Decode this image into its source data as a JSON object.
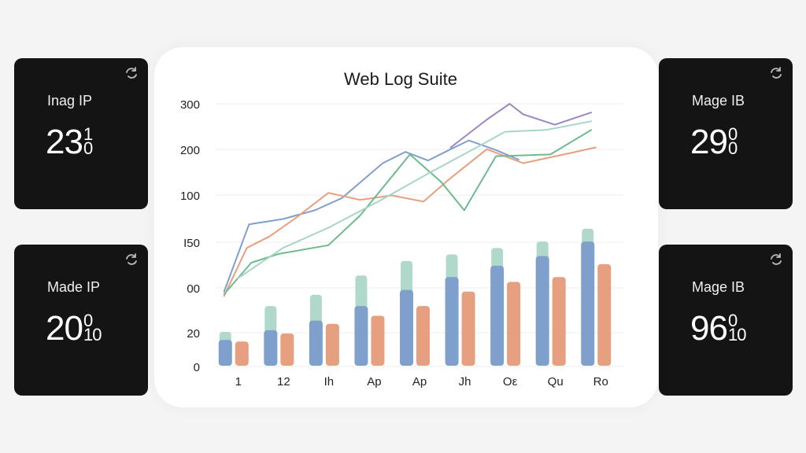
{
  "cards": [
    {
      "label": "Inag IP",
      "main": "23",
      "sup": "1",
      "sub": "0"
    },
    {
      "label": "Made IP",
      "main": "20",
      "sup": "0",
      "sub": "10"
    },
    {
      "label": "Mage IB",
      "main": "29",
      "sup": "0",
      "sub": "0"
    },
    {
      "label": "Mage IB",
      "main": "96",
      "sup": "0",
      "sub": "10"
    }
  ],
  "chart_data": {
    "type": "bar",
    "title": "Web Log Suite",
    "xlabel": "",
    "ylabel": "",
    "categories": [
      "1",
      "12",
      "Ih",
      "Ap",
      "Ap",
      "Jh",
      "Oε",
      "Qu",
      "Ro"
    ],
    "y_tick_labels": [
      "0",
      "20",
      "00",
      "I50",
      "100",
      "200",
      "300"
    ],
    "grid": true,
    "bar_series": [
      {
        "color": "#a8d5c5",
        "values": [
          21,
          37,
          44,
          56,
          65,
          69,
          73,
          77,
          85
        ]
      },
      {
        "color": "#7f9fcc",
        "values": [
          16,
          22,
          28,
          37,
          47,
          55,
          62,
          68,
          77
        ]
      },
      {
        "color": "#e6a07f",
        "values": [
          15,
          20,
          26,
          31,
          37,
          46,
          52,
          55,
          63
        ]
      }
    ],
    "line_series": [
      {
        "color": "#7f9fcc",
        "values": [
          [
            0.0,
            85
          ],
          [
            0.55,
            162
          ],
          [
            1.3,
            168
          ],
          [
            2.0,
            178
          ],
          [
            2.6,
            192
          ],
          [
            3.5,
            232
          ],
          [
            4.0,
            245
          ],
          [
            4.5,
            235
          ],
          [
            5.0,
            248
          ],
          [
            5.4,
            258
          ],
          [
            6.0,
            247
          ],
          [
            6.5,
            236
          ]
        ]
      },
      {
        "color": "#e6a07f",
        "values": [
          [
            0.0,
            80
          ],
          [
            0.5,
            135
          ],
          [
            1.0,
            148
          ],
          [
            1.6,
            170
          ],
          [
            2.3,
            198
          ],
          [
            3.0,
            190
          ],
          [
            3.7,
            195
          ],
          [
            4.4,
            188
          ],
          [
            5.0,
            215
          ],
          [
            5.8,
            248
          ],
          [
            6.6,
            232
          ],
          [
            7.5,
            242
          ],
          [
            8.2,
            250
          ]
        ]
      },
      {
        "color": "#6dbb8c",
        "values": [
          [
            0.0,
            82
          ],
          [
            0.6,
            118
          ],
          [
            1.2,
            128
          ],
          [
            2.3,
            138
          ],
          [
            3.0,
            172
          ],
          [
            4.1,
            242
          ],
          [
            4.8,
            210
          ],
          [
            5.3,
            178
          ],
          [
            6.0,
            240
          ],
          [
            7.2,
            242
          ],
          [
            8.1,
            270
          ]
        ]
      },
      {
        "color": "#a8d5c5",
        "values": [
          [
            0.3,
            100
          ],
          [
            1.3,
            135
          ],
          [
            2.3,
            158
          ],
          [
            3.4,
            188
          ],
          [
            4.5,
            220
          ],
          [
            5.5,
            248
          ],
          [
            6.2,
            268
          ],
          [
            7.1,
            270
          ],
          [
            8.1,
            280
          ]
        ]
      },
      {
        "color": "#9b86c2",
        "values": [
          [
            5.0,
            250
          ],
          [
            5.8,
            282
          ],
          [
            6.3,
            300
          ],
          [
            6.6,
            288
          ],
          [
            7.3,
            276
          ],
          [
            8.1,
            290
          ]
        ]
      }
    ]
  }
}
